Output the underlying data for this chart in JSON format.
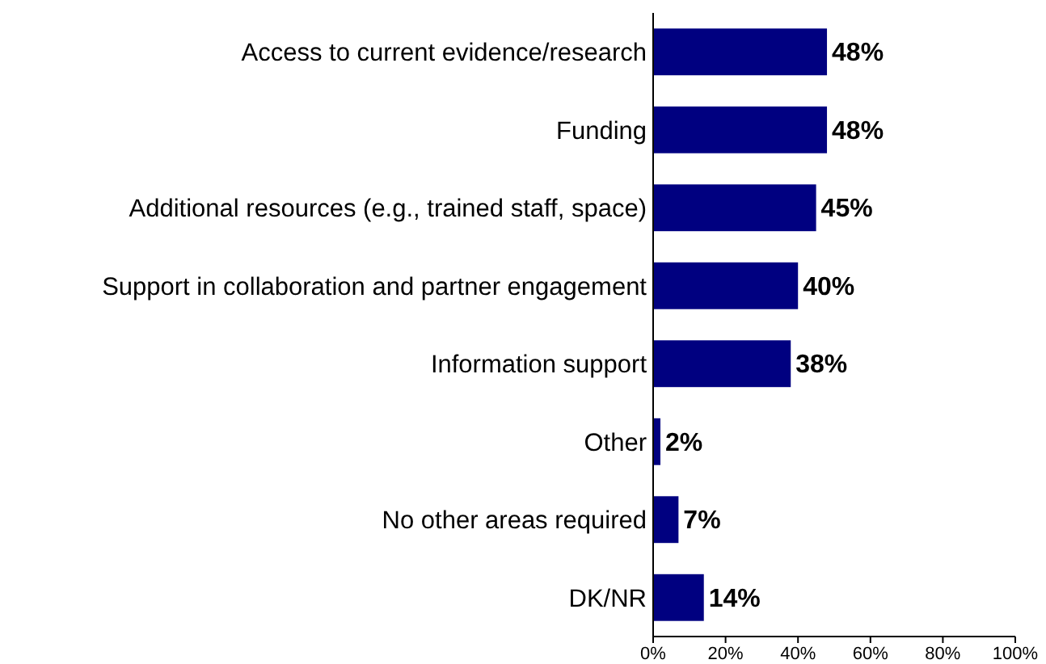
{
  "chart_data": {
    "type": "bar",
    "orientation": "horizontal",
    "categories": [
      "Access to current evidence/research",
      "Funding",
      "Additional resources (e.g., trained staff, space)",
      "Support in collaboration and partner engagement",
      "Information support",
      "Other",
      "No other areas required",
      "DK/NR"
    ],
    "values": [
      48,
      48,
      45,
      40,
      38,
      2,
      7,
      14
    ],
    "value_labels": [
      "48%",
      "48%",
      "45%",
      "40%",
      "38%",
      "2%",
      "7%",
      "14%"
    ],
    "color": "#000080",
    "xlim": [
      0,
      100
    ],
    "xticks": [
      {
        "value": 0,
        "label": "0%"
      },
      {
        "value": 20,
        "label": "20%"
      },
      {
        "value": 40,
        "label": "40%"
      },
      {
        "value": 60,
        "label": "60%"
      },
      {
        "value": 80,
        "label": "80%"
      },
      {
        "value": 100,
        "label": "100%"
      }
    ],
    "grid": false
  }
}
